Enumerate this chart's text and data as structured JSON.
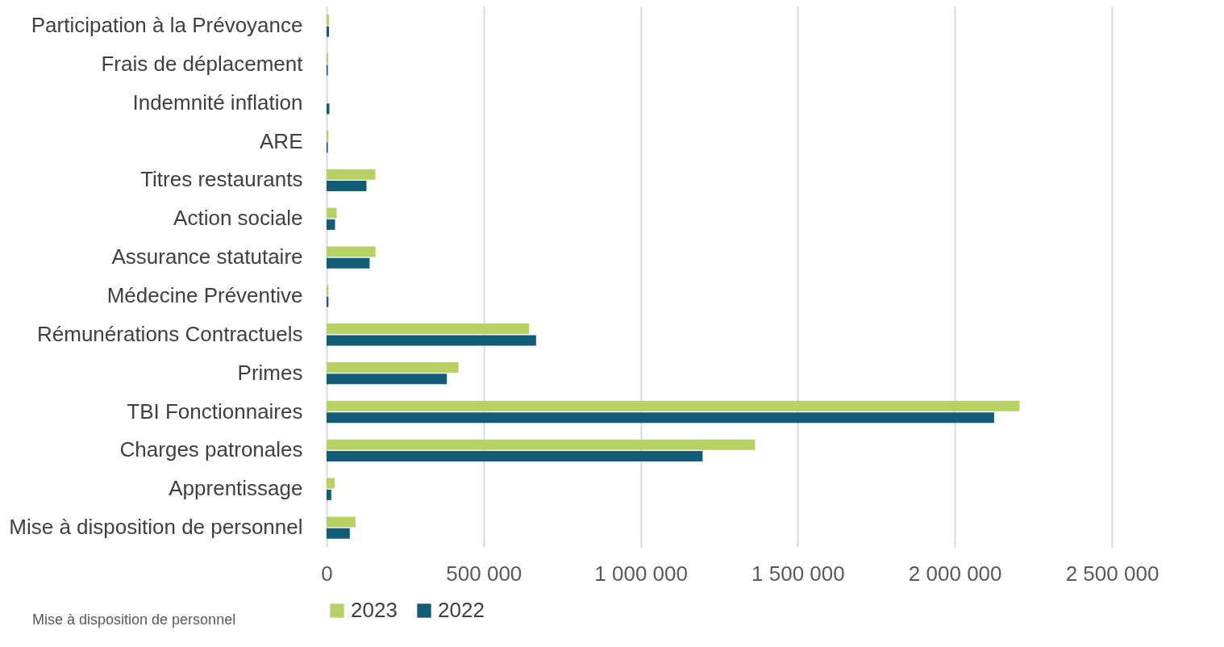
{
  "chart_data": {
    "type": "bar",
    "orientation": "horizontal",
    "categories": [
      "Participation à la Prévoyance",
      "Frais de déplacement",
      "Indemnité inflation",
      "ARE",
      "Titres restaurants",
      "Action sociale",
      "Assurance statutaire",
      "Médecine Préventive",
      "Rémunérations Contractuels",
      "Primes ",
      "TBI Fonctionnaires",
      "Charges patronales",
      "Apprentissage",
      "Mise à disposition de personnel"
    ],
    "series": [
      {
        "name": "2023",
        "color": "#b8d165",
        "values": [
          8000,
          5000,
          null,
          6000,
          155000,
          32000,
          156000,
          6000,
          645000,
          420000,
          2206000,
          1364000,
          26000,
          92000
        ]
      },
      {
        "name": "2022",
        "color": "#135c78",
        "values": [
          8000,
          4000,
          9000,
          4000,
          127000,
          27000,
          137000,
          6000,
          667000,
          383000,
          2125000,
          1197000,
          15000,
          74000
        ]
      }
    ],
    "xlim": [
      0,
      2500000
    ],
    "xticks": [
      {
        "value": 0,
        "label": "0"
      },
      {
        "value": 500000,
        "label": "500 000"
      },
      {
        "value": 1000000,
        "label": "1 000 000"
      },
      {
        "value": 1500000,
        "label": "1 500 000"
      },
      {
        "value": 2000000,
        "label": "2 000 000"
      },
      {
        "value": 2500000,
        "label": "2 500 000"
      }
    ],
    "grid": "x",
    "legend": "bottom",
    "annotations": [
      "Mise à disposition de personnel"
    ]
  }
}
